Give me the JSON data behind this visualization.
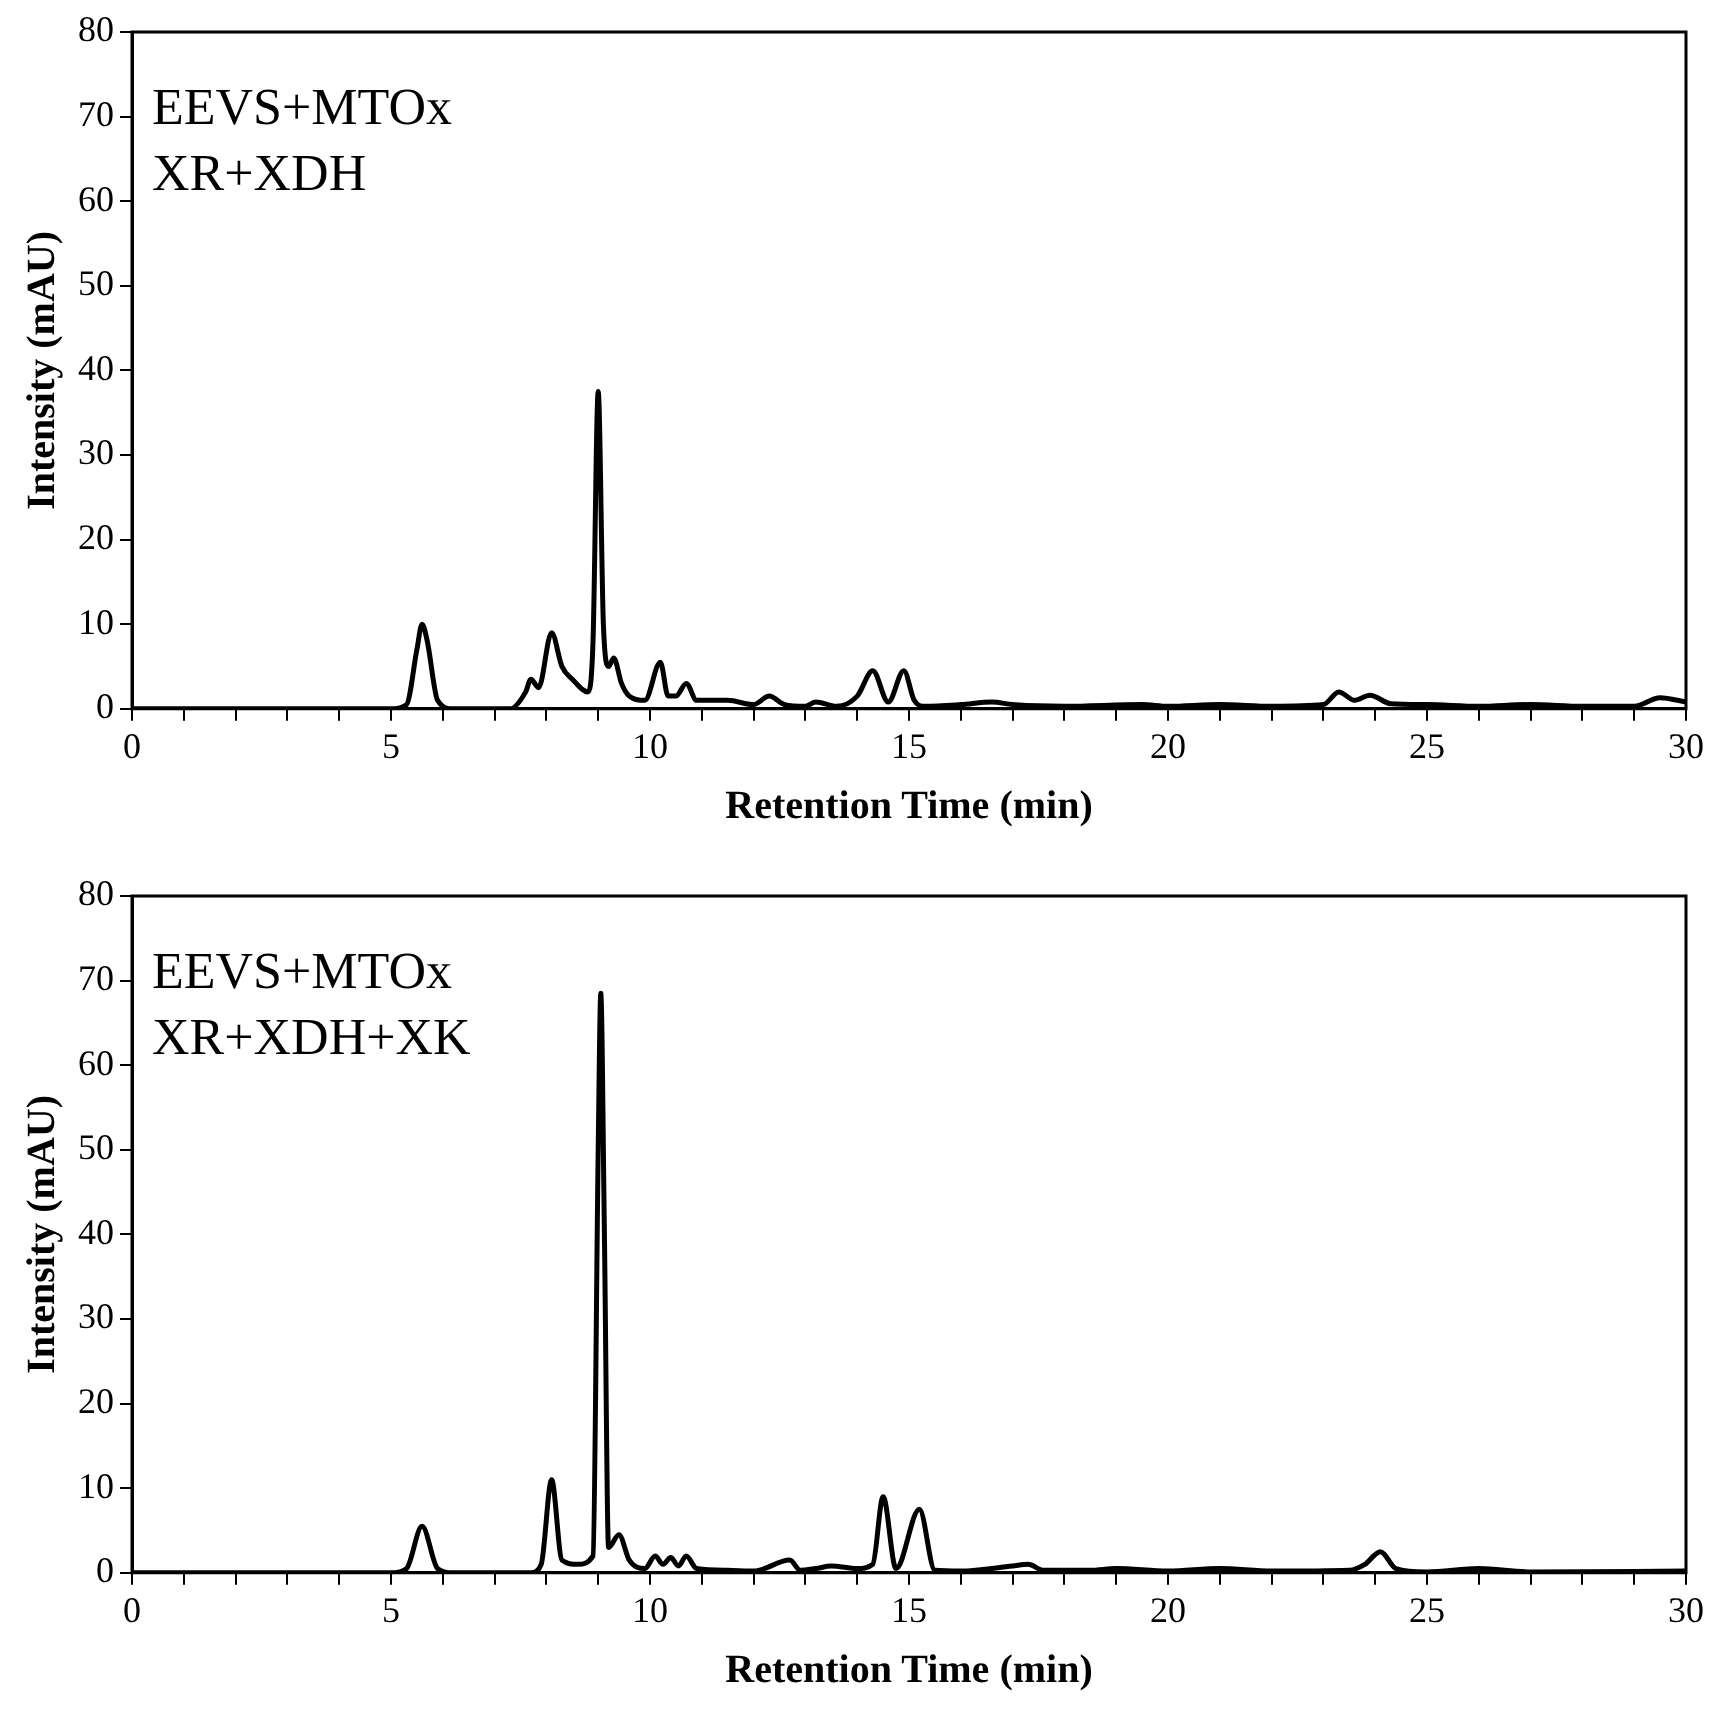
{
  "chart_data": [
    {
      "type": "line",
      "xlabel": "Retention Time (min)",
      "ylabel": "Intensity (mAU)",
      "annotations": [
        "EEVS+MTOx",
        "XR+XDH"
      ],
      "xlim": [
        0,
        30
      ],
      "ylim": [
        0,
        80
      ],
      "xticks": [
        0,
        {
          "value": 1,
          "label": null
        },
        {
          "value": 2,
          "label": null
        },
        {
          "value": 3,
          "label": null
        },
        {
          "value": 4,
          "label": null
        },
        5,
        {
          "value": 6,
          "label": null
        },
        {
          "value": 7,
          "label": null
        },
        {
          "value": 8,
          "label": null
        },
        {
          "value": 9,
          "label": null
        },
        10,
        {
          "value": 11,
          "label": null
        },
        {
          "value": 12,
          "label": null
        },
        {
          "value": 13,
          "label": null
        },
        {
          "value": 14,
          "label": null
        },
        15,
        {
          "value": 16,
          "label": null
        },
        {
          "value": 17,
          "label": null
        },
        {
          "value": 18,
          "label": null
        },
        {
          "value": 19,
          "label": null
        },
        20,
        {
          "value": 21,
          "label": null
        },
        {
          "value": 22,
          "label": null
        },
        {
          "value": 23,
          "label": null
        },
        {
          "value": 24,
          "label": null
        },
        25,
        {
          "value": 26,
          "label": null
        },
        {
          "value": 27,
          "label": null
        },
        {
          "value": 28,
          "label": null
        },
        {
          "value": 29,
          "label": null
        },
        30
      ],
      "yticks": [
        0,
        10,
        20,
        30,
        40,
        50,
        60,
        70,
        80
      ],
      "grid": false,
      "legend": false,
      "marker": "none",
      "line_style": "solid",
      "series": [
        {
          "color": "#000000",
          "x": [
            0,
            5,
            5.3,
            5.5,
            5.6,
            5.7,
            5.9,
            6.2,
            7.3,
            7.6,
            7.7,
            7.85,
            8.1,
            8.3,
            8.5,
            8.8,
            8.9,
            9.0,
            9.1,
            9.2,
            9.3,
            9.45,
            9.6,
            9.9,
            10.2,
            10.35,
            10.5,
            10.7,
            10.9,
            11.5,
            12,
            12.3,
            12.6,
            13,
            13.2,
            13.6,
            14,
            14.3,
            14.6,
            14.9,
            15.1,
            15.3,
            16,
            16.6,
            17,
            18,
            19.5,
            20,
            21,
            22,
            23,
            23.3,
            23.6,
            23.9,
            24.3,
            25,
            26,
            27,
            28,
            29,
            29.5,
            30
          ],
          "values": [
            0,
            0,
            0.5,
            7,
            10,
            8,
            1,
            0,
            0,
            2,
            3.5,
            2.5,
            9,
            5,
            3.5,
            2,
            8,
            37.5,
            10,
            5,
            6,
            3,
            1.5,
            1,
            5.5,
            1.5,
            1.5,
            3,
            1,
            1,
            0.5,
            1.5,
            0.5,
            0.3,
            0.8,
            0.3,
            1.5,
            4.5,
            0.8,
            4.5,
            1,
            0.3,
            0.5,
            0.8,
            0.5,
            0.3,
            0.5,
            0.3,
            0.5,
            0.3,
            0.5,
            2,
            1,
            1.6,
            0.6,
            0.5,
            0.3,
            0.5,
            0.3,
            0.3,
            1.3,
            0.8
          ]
        }
      ]
    },
    {
      "type": "line",
      "xlabel": "Retention Time (min)",
      "ylabel": "Intensity (mAU)",
      "annotations": [
        "EEVS+MTOx",
        "XR+XDH+XK"
      ],
      "xlim": [
        0,
        30
      ],
      "ylim": [
        0,
        80
      ],
      "xticks": [
        0,
        {
          "value": 1,
          "label": null
        },
        {
          "value": 2,
          "label": null
        },
        {
          "value": 3,
          "label": null
        },
        {
          "value": 4,
          "label": null
        },
        5,
        {
          "value": 6,
          "label": null
        },
        {
          "value": 7,
          "label": null
        },
        {
          "value": 8,
          "label": null
        },
        {
          "value": 9,
          "label": null
        },
        10,
        {
          "value": 11,
          "label": null
        },
        {
          "value": 12,
          "label": null
        },
        {
          "value": 13,
          "label": null
        },
        {
          "value": 14,
          "label": null
        },
        15,
        {
          "value": 16,
          "label": null
        },
        {
          "value": 17,
          "label": null
        },
        {
          "value": 18,
          "label": null
        },
        {
          "value": 19,
          "label": null
        },
        20,
        {
          "value": 21,
          "label": null
        },
        {
          "value": 22,
          "label": null
        },
        {
          "value": 23,
          "label": null
        },
        {
          "value": 24,
          "label": null
        },
        25,
        {
          "value": 26,
          "label": null
        },
        {
          "value": 27,
          "label": null
        },
        {
          "value": 28,
          "label": null
        },
        {
          "value": 29,
          "label": null
        },
        30
      ],
      "yticks": [
        0,
        10,
        20,
        30,
        40,
        50,
        60,
        70,
        80
      ],
      "grid": false,
      "legend": false,
      "marker": "none",
      "line_style": "solid",
      "series": [
        {
          "color": "#000000",
          "x": [
            0,
            5,
            5.3,
            5.6,
            5.9,
            6.2,
            7.7,
            7.9,
            8.1,
            8.3,
            8.6,
            8.9,
            9.0,
            9.05,
            9.12,
            9.2,
            9.4,
            9.6,
            9.9,
            10.1,
            10.25,
            10.4,
            10.55,
            10.7,
            10.9,
            11.5,
            12,
            12.7,
            12.9,
            13.2,
            13.5,
            14,
            14.3,
            14.5,
            14.75,
            15.2,
            15.5,
            16,
            17,
            17.3,
            17.6,
            18.5,
            19,
            20,
            21,
            22,
            23.5,
            23.8,
            24.1,
            24.4,
            25,
            26,
            27,
            30
          ],
          "values": [
            0,
            0,
            0.5,
            5.5,
            0.5,
            0,
            0,
            1,
            11,
            1.5,
            1,
            2,
            50,
            68.5,
            40,
            3,
            4.5,
            1.5,
            0.5,
            2,
            1,
            1.8,
            0.8,
            2,
            0.5,
            0.3,
            0.2,
            1.5,
            0.3,
            0.5,
            0.8,
            0.5,
            1,
            9,
            0.5,
            7.5,
            0.3,
            0.2,
            0.8,
            1,
            0.3,
            0.3,
            0.5,
            0.2,
            0.5,
            0.2,
            0.3,
            1,
            2.5,
            0.5,
            0.1,
            0.5,
            0.1,
            0.2
          ]
        }
      ]
    }
  ]
}
